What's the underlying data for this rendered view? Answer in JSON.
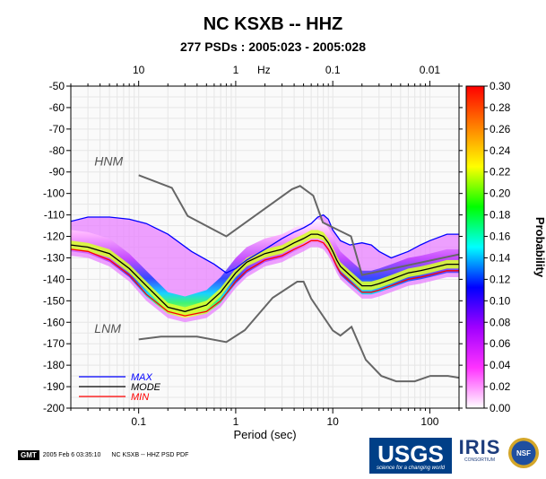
{
  "header": {
    "title": "NC KSXB -- HHZ",
    "subtitle": "277 PSDs : 2005:023 - 2005:028"
  },
  "footer": {
    "gmt_badge": "GMT",
    "timestamp": "2005 Feb  6 03:35:10",
    "caption": "NC KSXB -- HHZ PSD PDF",
    "usgs_label": "USGS",
    "usgs_tagline": "science for a changing world",
    "iris_label": "IRIS",
    "iris_sub": "CONSORTIUM",
    "nsf_label": "NSF"
  },
  "chart_data": {
    "type": "heatmap",
    "title": "NC KSXB -- HHZ",
    "subtitle": "277 PSDs : 2005:023 - 2005:028",
    "xlabel": "Period (sec)",
    "x_top_label": "Hz",
    "x_scale": "log",
    "xlim": [
      0.02,
      200
    ],
    "ylim": [
      -200,
      -50
    ],
    "x_ticks": [
      0.1,
      1,
      10,
      100
    ],
    "x_tick_labels": [
      "0.1",
      "1",
      "10",
      "100"
    ],
    "x_top_ticks_hz": [
      10,
      1,
      0.1,
      0.01
    ],
    "x_top_tick_labels": [
      "10",
      "1",
      "0.1",
      "0.01"
    ],
    "y_ticks": [
      -50,
      -60,
      -70,
      -80,
      -90,
      -100,
      -110,
      -120,
      -130,
      -140,
      -150,
      -160,
      -170,
      -180,
      -190,
      -200
    ],
    "y_tick_labels": [
      "-50",
      "-60",
      "-70",
      "-80",
      "-90",
      "-100",
      "-110",
      "-120",
      "-130",
      "-140",
      "-150",
      "-160",
      "-170",
      "-180",
      "-190",
      "-200"
    ],
    "grid": true,
    "colorbar": {
      "label": "Probability",
      "range": [
        0,
        0.3
      ],
      "ticks": [
        0.0,
        0.02,
        0.04,
        0.06,
        0.08,
        0.1,
        0.12,
        0.14,
        0.16,
        0.18,
        0.2,
        0.22,
        0.24,
        0.26,
        0.28,
        0.3
      ],
      "tick_labels": [
        "0.00",
        "0.02",
        "0.04",
        "0.06",
        "0.08",
        "0.10",
        "0.12",
        "0.14",
        "0.16",
        "0.18",
        "0.20",
        "0.22",
        "0.24",
        "0.26",
        "0.28",
        "0.30"
      ],
      "colors": [
        "#ffffff",
        "#ff33ff",
        "#a000ff",
        "#0000ff",
        "#00ffff",
        "#00ff00",
        "#ffff00",
        "#ff8000",
        "#ff0000"
      ]
    },
    "annotations": [
      "HNM",
      "LNM"
    ],
    "legend": {
      "placement": "bottom-left",
      "entries": [
        {
          "name": "MAX",
          "color": "#0000ff"
        },
        {
          "name": "MODE",
          "color": "#000000"
        },
        {
          "name": "MIN",
          "color": "#ff0000"
        }
      ]
    },
    "series": [
      {
        "name": "MAX",
        "color": "#0000ff",
        "x": [
          0.02,
          0.03,
          0.05,
          0.08,
          0.12,
          0.2,
          0.35,
          0.6,
          0.8,
          1.0,
          1.3,
          2,
          3,
          4,
          5,
          6,
          7,
          8,
          9,
          10,
          12,
          15,
          20,
          25,
          30,
          40,
          60,
          80,
          100,
          150,
          200
        ],
        "y": [
          -113,
          -111,
          -111,
          -112,
          -114,
          -119,
          -127,
          -133,
          -137,
          -135,
          -131,
          -126,
          -121,
          -118,
          -116,
          -114,
          -111,
          -110,
          -112,
          -117,
          -122,
          -124,
          -123,
          -124,
          -127,
          -130,
          -127,
          -124,
          -122,
          -119,
          -119
        ]
      },
      {
        "name": "MODE",
        "color": "#000000",
        "x": [
          0.02,
          0.03,
          0.05,
          0.08,
          0.12,
          0.2,
          0.3,
          0.5,
          0.7,
          1.0,
          1.3,
          2,
          3,
          4,
          5,
          6,
          7,
          8,
          9,
          10,
          11,
          12,
          15,
          20,
          25,
          30,
          40,
          60,
          80,
          100,
          150,
          200
        ],
        "y": [
          -124,
          -125,
          -128,
          -135,
          -143,
          -153,
          -155,
          -152,
          -146,
          -137,
          -132,
          -128,
          -126,
          -123,
          -121,
          -119,
          -119,
          -120,
          -123,
          -127,
          -131,
          -134,
          -138,
          -143,
          -143,
          -142,
          -140,
          -137,
          -136,
          -135,
          -133,
          -133
        ]
      },
      {
        "name": "MIN",
        "color": "#ff0000",
        "x": [
          0.02,
          0.03,
          0.05,
          0.08,
          0.12,
          0.2,
          0.3,
          0.5,
          0.7,
          1.0,
          1.3,
          2,
          3,
          4,
          5,
          6,
          7,
          8,
          9,
          10,
          11,
          12,
          15,
          20,
          25,
          30,
          40,
          60,
          80,
          100,
          150,
          200
        ],
        "y": [
          -126,
          -127,
          -131,
          -138,
          -147,
          -155,
          -157,
          -155,
          -150,
          -141,
          -136,
          -131,
          -129,
          -126,
          -124,
          -122,
          -122,
          -123,
          -126,
          -130,
          -134,
          -137,
          -141,
          -146,
          -146,
          -145,
          -143,
          -140,
          -139,
          -138,
          -136,
          -136
        ]
      },
      {
        "name": "HNM",
        "color": "#666666",
        "x": [
          0.1,
          0.22,
          0.32,
          0.8,
          3.8,
          4.6,
          6.3,
          7.9,
          15.4,
          20,
          354
        ],
        "y": [
          -91.5,
          -97.4,
          -110.5,
          -120,
          -98,
          -96.5,
          -101,
          -113.5,
          -120,
          -138,
          -126
        ]
      },
      {
        "name": "LNM",
        "color": "#666666",
        "x": [
          0.1,
          0.17,
          0.4,
          0.8,
          1.24,
          2.4,
          4.3,
          5,
          6,
          10,
          12,
          15.6,
          21.9,
          31.6,
          45,
          70,
          101,
          154,
          328
        ],
        "y": [
          -168,
          -166.7,
          -166.7,
          -169.2,
          -163.7,
          -148.6,
          -141.1,
          -141.1,
          -149,
          -163.8,
          -166.2,
          -162.1,
          -177.5,
          -185,
          -187.5,
          -187.5,
          -185,
          -185,
          -187.5
        ]
      }
    ]
  }
}
